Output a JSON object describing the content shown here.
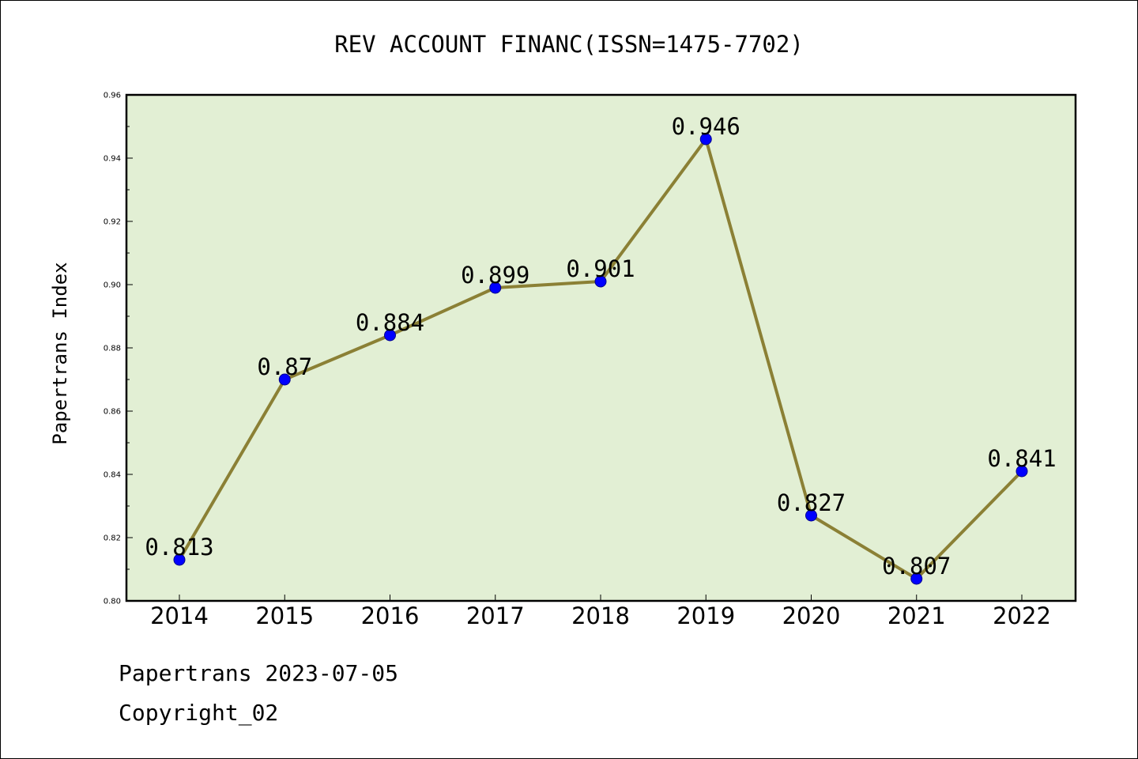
{
  "chart_data": {
    "type": "line",
    "title": "REV ACCOUNT FINANC(ISSN=1475-7702)",
    "ylabel": "Papertrans Index",
    "xlabel": "",
    "categories": [
      "2014",
      "2015",
      "2016",
      "2017",
      "2018",
      "2019",
      "2020",
      "2021",
      "2022"
    ],
    "series": [
      {
        "values": [
          0.813,
          0.87,
          0.884,
          0.899,
          0.901,
          0.946,
          0.827,
          0.807,
          0.841
        ],
        "labels": [
          "0.813",
          "0.87",
          "0.884",
          "0.899",
          "0.901",
          "0.946",
          "0.827",
          "0.807",
          "0.841"
        ],
        "line_color": "#8b8035",
        "marker_color": "#0000ff"
      }
    ],
    "ylim": [
      0.8,
      0.96
    ],
    "yticks": [
      "0.80",
      "0.82",
      "0.84",
      "0.86",
      "0.88",
      "0.90",
      "0.92",
      "0.94",
      "0.96"
    ],
    "plot_background": "#e2efd4",
    "grid": false,
    "legend": "none"
  },
  "footer": {
    "line1": "Papertrans 2023-07-05",
    "line2": "Copyright_02"
  }
}
